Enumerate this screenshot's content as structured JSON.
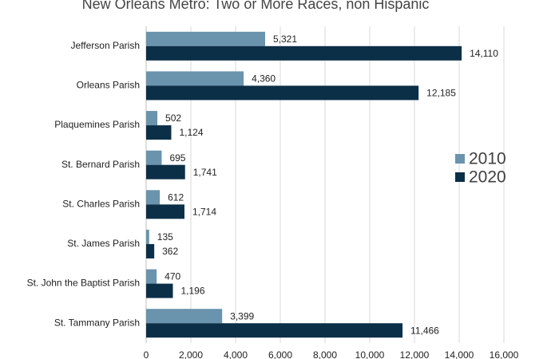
{
  "chart_data": {
    "type": "hbar",
    "title": "New Orleans Metro: Two or More Races, non Hispanic",
    "categories": [
      "Jefferson Parish",
      "Orleans Parish",
      "Plaquemines Parish",
      "St. Bernard Parish",
      "St. Charles Parish",
      "St. James Parish",
      "St. John the Baptist Parish",
      "St. Tammany Parish"
    ],
    "series": [
      {
        "name": "2010",
        "color": "#6a93ad",
        "values": [
          5321,
          4360,
          502,
          695,
          612,
          135,
          470,
          3399
        ],
        "value_labels": [
          "5,321",
          "4,360",
          "502",
          "695",
          "612",
          "135",
          "470",
          "3,399"
        ]
      },
      {
        "name": "2020",
        "color": "#0c2f48",
        "values": [
          14110,
          12185,
          1124,
          1741,
          1714,
          362,
          1196,
          11466
        ],
        "value_labels": [
          "14,110",
          "12,185",
          "1,124",
          "1,741",
          "1,714",
          "362",
          "1,196",
          "11,466"
        ]
      }
    ],
    "xlim": [
      0,
      16000
    ],
    "xticks": [
      0,
      {
        "value": 2000,
        "label": "2,000"
      },
      {
        "value": 4000,
        "label": "4,000"
      },
      {
        "value": 6000,
        "label": "6,000"
      },
      {
        "value": 8000,
        "label": "8,000"
      },
      {
        "value": 10000,
        "label": "10,000"
      },
      {
        "value": 12000,
        "label": "12,000"
      },
      {
        "value": 14000,
        "label": "14,000"
      },
      {
        "value": 16000,
        "label": "16,000"
      }
    ],
    "grid": true,
    "legend": "right"
  }
}
